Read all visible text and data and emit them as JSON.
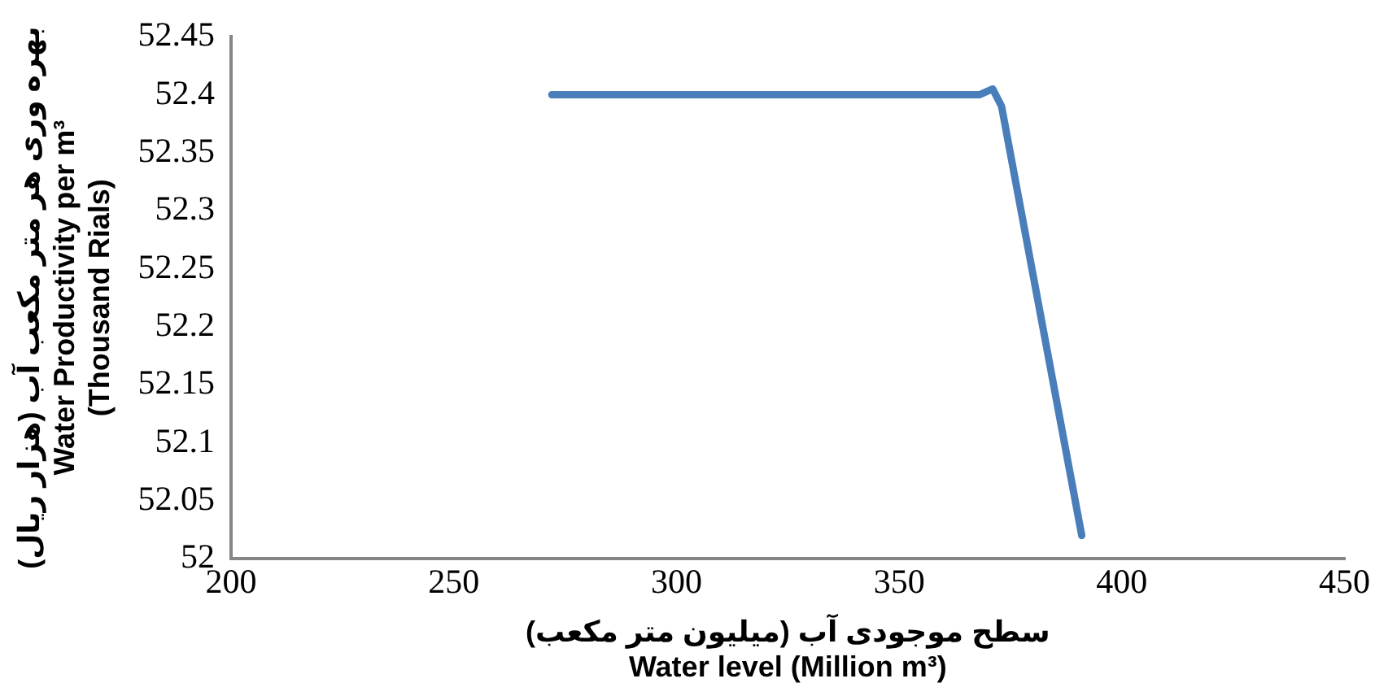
{
  "chart_data": {
    "type": "line",
    "xlabel": "سطح موجودی آب (میلیون متر مکعب)\nWater level (Million m³)",
    "ylabel": "بهره وری هر متر مکعب آب (هزار ریال)\nWater Productivity per m³\n(Thousand Rials)",
    "series": [
      {
        "color": "#4a7ebb",
        "x": [
          272,
          368,
          371,
          373,
          391
        ],
        "values": [
          52.4,
          52.4,
          52.405,
          52.39,
          52.02
        ]
      }
    ],
    "xlim": [
      200,
      450
    ],
    "xticks": [
      200,
      250,
      300,
      350,
      400,
      450
    ],
    "ylim": [
      52,
      52.45
    ],
    "yticks": [
      52,
      52.05,
      52.1,
      52.15,
      52.2,
      52.25,
      52.3,
      52.35,
      52.4,
      52.45
    ],
    "grid": false,
    "legend": false,
    "marker": "none",
    "line_style": "solid"
  }
}
